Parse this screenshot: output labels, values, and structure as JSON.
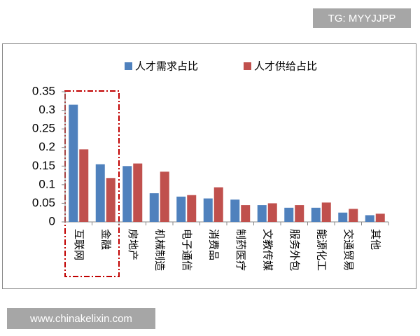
{
  "watermarks": {
    "top": "TG: MYYJJPP",
    "bottom": "www.chinakelixin.com"
  },
  "chart_data": {
    "type": "bar",
    "categories": [
      "互联网",
      "金融",
      "房地产",
      "机械制造",
      "电子通信",
      "消费品",
      "制药医疗",
      "文教传媒",
      "服务外包",
      "能源化工",
      "交通贸易",
      "其他"
    ],
    "series": [
      {
        "name": "人才需求占比",
        "color": "#4f81bd",
        "values": [
          0.315,
          0.155,
          0.15,
          0.077,
          0.068,
          0.063,
          0.06,
          0.045,
          0.038,
          0.038,
          0.025,
          0.018
        ]
      },
      {
        "name": "人才供给占比",
        "color": "#c0504d",
        "values": [
          0.195,
          0.118,
          0.157,
          0.135,
          0.072,
          0.093,
          0.045,
          0.05,
          0.045,
          0.052,
          0.035,
          0.022
        ]
      }
    ],
    "ylim": [
      0,
      0.35
    ],
    "yticks": [
      0,
      0.05,
      0.1,
      0.15,
      0.2,
      0.25,
      0.3,
      0.35
    ]
  }
}
